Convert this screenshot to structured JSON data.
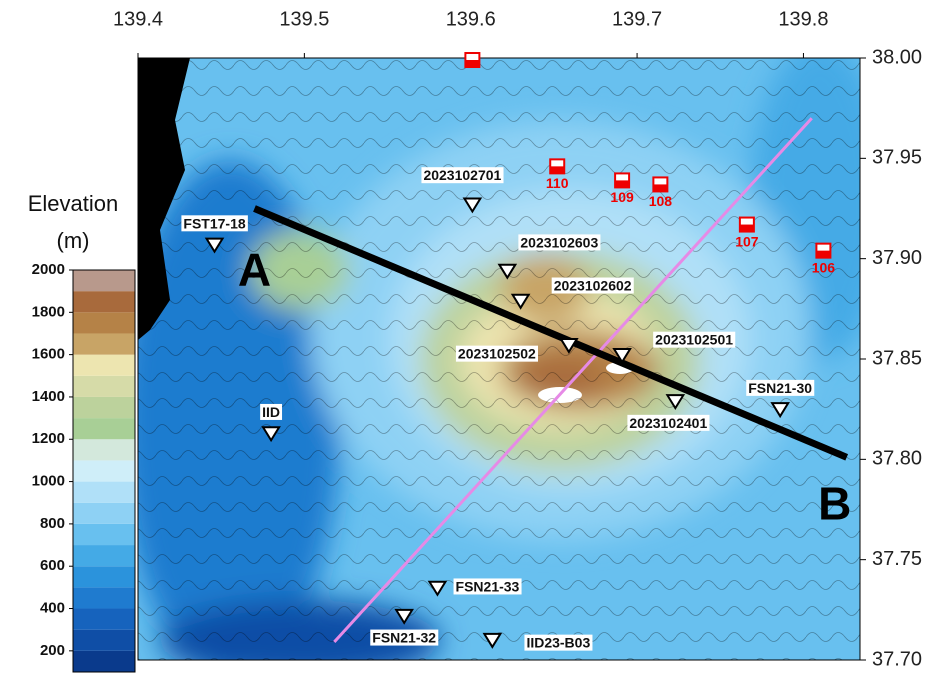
{
  "map": {
    "xlim": [
      139.4,
      139.834
    ],
    "ylim": [
      37.7,
      38.0
    ],
    "xticks": [
      139.4,
      139.5,
      139.6,
      139.7,
      139.8
    ],
    "yticks": [
      {
        "value": 38.0,
        "label": "38.00"
      },
      37.95,
      {
        "value": 37.9,
        "label": "37.90"
      },
      37.85,
      {
        "value": 37.8,
        "label": "37.80"
      },
      37.75,
      {
        "value": 37.7,
        "label": "37.70"
      }
    ],
    "stations": [
      {
        "label": "FST17-18",
        "lon": 139.446,
        "lat": 37.907
      },
      {
        "label": "IID",
        "lon": 139.48,
        "lat": 37.813
      },
      {
        "label": "2023102701",
        "lon": 139.601,
        "lat": 37.927
      },
      {
        "label": "2023102603",
        "lon": 139.622,
        "lat": 37.894
      },
      {
        "label": "2023102602",
        "lon": 139.63,
        "lat": 37.879
      },
      {
        "label": "2023102502",
        "lon": 139.659,
        "lat": 37.857
      },
      {
        "label": "2023102501",
        "lon": 139.691,
        "lat": 37.852
      },
      {
        "label": "2023102401",
        "lon": 139.723,
        "lat": 37.829
      },
      {
        "label": "FSN21-30",
        "lon": 139.786,
        "lat": 37.825
      },
      {
        "label": "FSN21-33",
        "lon": 139.58,
        "lat": 37.736
      },
      {
        "label": "FSN21-32",
        "lon": 139.56,
        "lat": 37.722
      },
      {
        "label": "IID23-B03",
        "lon": 139.613,
        "lat": 37.71
      }
    ],
    "station_color": "#ffffff",
    "obs": [
      {
        "label": null,
        "lon": 139.601,
        "lat": 37.999
      },
      {
        "label": "110",
        "lon": 139.652,
        "lat": 37.946
      },
      {
        "label": "109",
        "lon": 139.691,
        "lat": 37.939
      },
      {
        "label": "108",
        "lon": 139.714,
        "lat": 37.937
      },
      {
        "label": "107",
        "lon": 139.766,
        "lat": 37.917
      },
      {
        "label": "106",
        "lon": 139.812,
        "lat": 37.904
      }
    ],
    "obs_color": "#ee0000",
    "profile": {
      "start_label": "A",
      "end_label": "B",
      "lon": [
        139.47,
        139.826
      ],
      "lat": [
        37.925,
        37.801
      ],
      "color": "#000000"
    },
    "line2": {
      "lon": [
        139.518,
        139.805
      ],
      "lat": [
        37.709,
        37.97
      ],
      "color": "#e68ae6"
    }
  },
  "colorbar": {
    "title": [
      "Elevation",
      "(m)"
    ],
    "lim": [
      100,
      2000
    ],
    "ticks": [
      200,
      400,
      600,
      800,
      1000,
      1200,
      1400,
      1600,
      1800,
      2000
    ],
    "levels": [
      100,
      200,
      300,
      400,
      500,
      600,
      700,
      800,
      900,
      1000,
      1100,
      1200,
      1300,
      1400,
      1500,
      1600,
      1700,
      1800,
      1900,
      2000
    ],
    "colors": [
      "#0a3a8c",
      "#0f4ea6",
      "#1663bd",
      "#1f7bcf",
      "#2b93dc",
      "#44aae6",
      "#68c0ef",
      "#8ed1f4",
      "#b0e0f8",
      "#cfeef9",
      "#d3e8dc",
      "#a8cf96",
      "#bcd29c",
      "#d6dba8",
      "#ede5b0",
      "#c8a466",
      "#b58247",
      "#a86a3c",
      "#b8998c",
      "#ffffff"
    ]
  }
}
